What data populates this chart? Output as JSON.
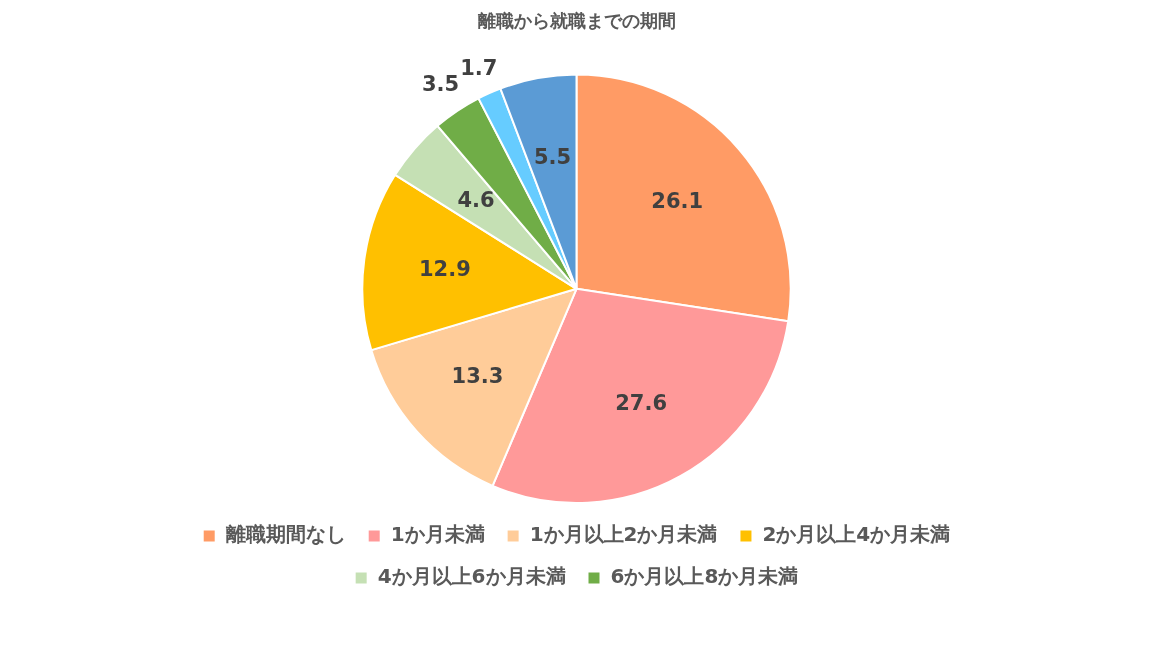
{
  "chart_data": {
    "type": "pie",
    "title": "離職から就職までの期間",
    "categories": [
      "離職期間なし",
      "1か月未満",
      "1か月以上2か月未満",
      "2か月以上4か月未満",
      "4か月以上6か月未満",
      "6か月以上8か月未満",
      null,
      null
    ],
    "values": [
      26.1,
      27.6,
      13.3,
      12.9,
      4.6,
      3.5,
      1.7,
      5.5
    ],
    "colors": [
      "#ff9b65",
      "#ff9999",
      "#ffcc99",
      "#ffc000",
      "#c5e0b4",
      "#70ad47",
      "#66ccff",
      "#5b9bd5"
    ],
    "data_labels": true,
    "legend": "bottom"
  }
}
